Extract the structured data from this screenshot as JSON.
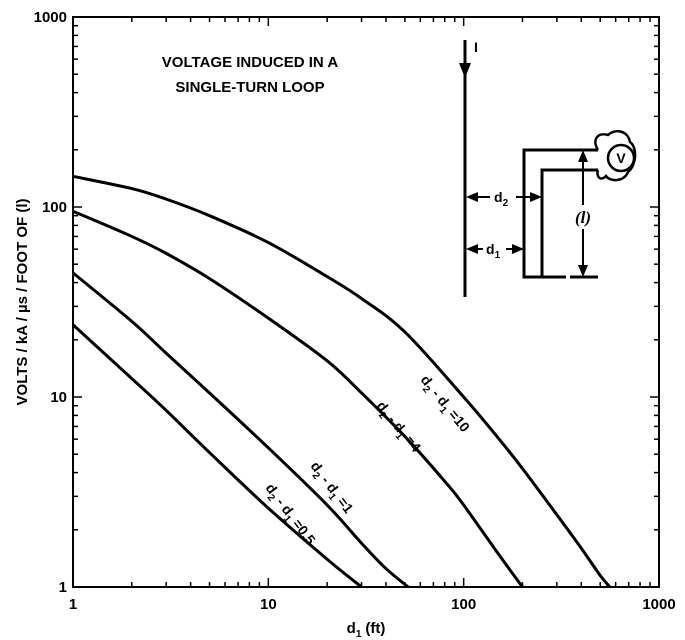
{
  "chart_data": {
    "type": "line",
    "title": "VOLTAGE INDUCED IN A",
    "subtitle": "SINGLE-TURN LOOP",
    "xlabel_main": "d",
    "xlabel_sub": "1",
    "xlabel_unit": "(ft)",
    "ylabel": "VOLTS / kA / µs / FOOT OF (l)",
    "xscale": "log",
    "yscale": "log",
    "xlim": [
      1,
      1000
    ],
    "ylim": [
      1,
      1000
    ],
    "x_ticks": [
      "1",
      "10",
      "100",
      "1000"
    ],
    "y_ticks": [
      "1",
      "10",
      "100",
      "1000"
    ],
    "x_tick_values": [
      1,
      10,
      100,
      1000
    ],
    "y_tick_values": [
      1,
      10,
      100,
      1000
    ],
    "grid": false,
    "series": [
      {
        "label_parts": [
          "d",
          "2",
          " - d",
          "1",
          " =10"
        ],
        "x": [
          1,
          2,
          3,
          5,
          10,
          20,
          30,
          50,
          100,
          150,
          200,
          300,
          400,
          500,
          560
        ],
        "y": [
          145,
          125,
          110,
          90,
          65,
          43,
          33,
          22,
          10,
          6.1,
          4.2,
          2.4,
          1.6,
          1.15,
          1
        ]
      },
      {
        "label_parts": [
          "d",
          "2",
          " - d",
          "1",
          " =4"
        ],
        "x": [
          1,
          2,
          3,
          5,
          10,
          20,
          30,
          50,
          80,
          100,
          150,
          200
        ],
        "y": [
          95,
          70,
          57,
          42,
          26,
          15.5,
          10.5,
          6.2,
          3.6,
          2.7,
          1.5,
          1
        ]
      },
      {
        "label_parts": [
          "d",
          "2",
          " - d",
          "1",
          " =1"
        ],
        "x": [
          1,
          2,
          3,
          5,
          10,
          20,
          30,
          40,
          52
        ],
        "y": [
          45,
          25,
          17,
          10.5,
          5.4,
          2.7,
          1.7,
          1.25,
          1
        ]
      },
      {
        "label_parts": [
          "d",
          "2",
          " - d",
          "1",
          " =0.5"
        ],
        "x": [
          1,
          2,
          3,
          5,
          10,
          20,
          30
        ],
        "y": [
          24,
          12.5,
          8.5,
          5.1,
          2.6,
          1.4,
          1
        ]
      }
    ]
  },
  "inset": {
    "current_label": "I",
    "d2_main": "d",
    "d2_sub": "2",
    "d1_main": "d",
    "d1_sub": "1",
    "l_label": "(l)",
    "meter_label": "V"
  }
}
